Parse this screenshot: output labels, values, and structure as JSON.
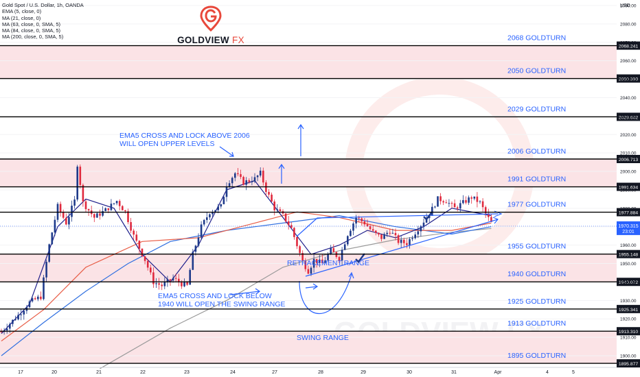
{
  "header": {
    "instrument": "Gold Spot / U.S. Dollar, 1h, OANDA",
    "indicators": [
      "EMA (5, close, 0)",
      "MA (21, close, 0)",
      "MA (63, close, 0, SMA, 5)",
      "MA (84, close, 0, SMA, 5)",
      "MA (200, close, 0, SMA, 5)"
    ]
  },
  "brand": {
    "logo_main": "GOLDVIEW",
    "logo_fx": "FX",
    "watermark": "GOLDVIEW FX",
    "accent": "#e8483b"
  },
  "colors": {
    "up_candle": "#1e3a8a",
    "down_candle": "#e0293d",
    "zone_fill": "#fbe3e6",
    "level_line": "#000000",
    "annotation": "#2962ff",
    "ema5": "#0d2b8c",
    "ma21": "#1e1e8a",
    "ma63": "#e85c45",
    "ma84": "#2f6fe0",
    "ma200": "#9a9a9a",
    "price_tag": "#2962ff"
  },
  "chart_data": {
    "type": "candlestick",
    "title": "Gold Spot / U.S. Dollar, 1h, OANDA",
    "ylabel": "USD",
    "ylim": [
      1893,
      2093
    ],
    "y_ticks": [
      1900,
      1910,
      1920,
      1930,
      1940,
      1950,
      1960,
      1970,
      1980,
      1990,
      2000,
      2010,
      2020,
      2030,
      2040,
      2050,
      2060,
      2070,
      2080,
      2090
    ],
    "x_ticks": [
      "17",
      "20",
      "21",
      "22",
      "23",
      "24",
      "27",
      "28",
      "29",
      "30",
      "31",
      "Apr",
      "4",
      "5"
    ],
    "last_price": {
      "value": "1970.315",
      "countdown": "23:01"
    },
    "levels": [
      {
        "value": 2068.241,
        "tag": "2068.241",
        "label": "2068 GOLDTURN"
      },
      {
        "value": 2050.39,
        "tag": "2050.390",
        "label": "2050 GOLDTURN"
      },
      {
        "value": 2029.602,
        "tag": "2029.602",
        "label": "2029 GOLDTURN"
      },
      {
        "value": 2006.713,
        "tag": "2006.713",
        "label": "2006 GOLDTURN"
      },
      {
        "value": 1991.634,
        "tag": "1991.634",
        "label": "1991 GOLDTURN"
      },
      {
        "value": 1977.884,
        "tag": "1977.884",
        "label": "1977 GOLDTURN"
      },
      {
        "value": 1955.148,
        "tag": "1955.148",
        "label": "1955 GOLDTURN"
      },
      {
        "value": 1940.072,
        "tag": "1940.072",
        "label": "1940 GOLDTURN"
      },
      {
        "value": 1925.341,
        "tag": "1925.341",
        "label": "1925 GOLDTURN"
      },
      {
        "value": 1913.31,
        "tag": "1913.310",
        "label": "1913 GOLDTURN"
      },
      {
        "value": 1895.877,
        "tag": "1895.877",
        "label": "1895 GOLDTURN"
      }
    ],
    "zones": [
      {
        "from": 2050.39,
        "to": 2068.241
      },
      {
        "from": 1991.634,
        "to": 2006.713
      },
      {
        "from": 1940.072,
        "to": 1955.148
      },
      {
        "from": 1895.877,
        "to": 1913.31
      }
    ],
    "annotations": {
      "ema_above_line1": "EMA5 CROSS AND LOCK ABOVE 2006",
      "ema_above_line2": "WILL OPEN UPPER LEVELS",
      "ema_below_line1": "EMA5 CROSS AND LOCK BELOW",
      "ema_below_line2": "1940 WILL OPEN THE SWING RANGE",
      "retracement": "RETRACEMENT RANGE",
      "swing": "SWING RANGE"
    },
    "price_path": [
      [
        0,
        1913
      ],
      [
        6,
        1922
      ],
      [
        10,
        1929
      ],
      [
        14,
        1932
      ],
      [
        17,
        1960
      ],
      [
        20,
        1981
      ],
      [
        23,
        1972
      ],
      [
        26,
        1984
      ],
      [
        27,
        2004
      ],
      [
        29,
        1983
      ],
      [
        33,
        1975
      ],
      [
        37,
        1979
      ],
      [
        41,
        1984
      ],
      [
        44,
        1978
      ],
      [
        47,
        1965
      ],
      [
        51,
        1952
      ],
      [
        54,
        1940
      ],
      [
        57,
        1938
      ],
      [
        61,
        1942
      ],
      [
        64,
        1939
      ],
      [
        66,
        1938
      ],
      [
        68,
        1955
      ],
      [
        71,
        1970
      ],
      [
        74,
        1978
      ],
      [
        78,
        1981
      ],
      [
        80,
        1993
      ],
      [
        83,
        1999
      ],
      [
        86,
        1994
      ],
      [
        90,
        1996
      ],
      [
        92,
        1999
      ],
      [
        94,
        1990
      ],
      [
        97,
        1980
      ],
      [
        100,
        1976
      ],
      [
        103,
        1969
      ],
      [
        105,
        1960
      ],
      [
        107,
        1951
      ],
      [
        109,
        1946
      ],
      [
        111,
        1952
      ],
      [
        114,
        1950
      ],
      [
        117,
        1957
      ],
      [
        120,
        1953
      ],
      [
        123,
        1966
      ],
      [
        126,
        1975
      ],
      [
        129,
        1972
      ],
      [
        132,
        1967
      ],
      [
        135,
        1964
      ],
      [
        138,
        1968
      ],
      [
        141,
        1962
      ],
      [
        144,
        1961
      ],
      [
        147,
        1967
      ],
      [
        150,
        1973
      ],
      [
        152,
        1977
      ],
      [
        155,
        1985
      ],
      [
        158,
        1984
      ],
      [
        161,
        1980
      ],
      [
        164,
        1983
      ],
      [
        167,
        1986
      ],
      [
        170,
        1983
      ],
      [
        172,
        1977
      ],
      [
        174,
        1972
      ]
    ],
    "ma_lines": [
      {
        "name": "MA 200",
        "points": [
          [
            35,
            1893
          ],
          [
            60,
            1915
          ],
          [
            80,
            1930
          ],
          [
            100,
            1948
          ],
          [
            120,
            1957
          ],
          [
            140,
            1963
          ],
          [
            160,
            1967
          ],
          [
            174,
            1969
          ]
        ]
      },
      {
        "name": "MA 84",
        "points": [
          [
            0,
            1900
          ],
          [
            15,
            1918
          ],
          [
            30,
            1935
          ],
          [
            45,
            1950
          ],
          [
            60,
            1962
          ],
          [
            80,
            1968
          ],
          [
            100,
            1972
          ],
          [
            120,
            1976
          ],
          [
            140,
            1970
          ],
          [
            160,
            1966
          ],
          [
            174,
            1970
          ]
        ]
      },
      {
        "name": "MA 63",
        "points": [
          [
            0,
            1908
          ],
          [
            15,
            1925
          ],
          [
            30,
            1948
          ],
          [
            50,
            1962
          ],
          [
            70,
            1964
          ],
          [
            90,
            1972
          ],
          [
            105,
            1978
          ],
          [
            120,
            1975
          ],
          [
            140,
            1968
          ],
          [
            160,
            1968
          ],
          [
            174,
            1972
          ]
        ]
      },
      {
        "name": "MA 21",
        "points": [
          [
            0,
            1912
          ],
          [
            10,
            1928
          ],
          [
            20,
            1970
          ],
          [
            30,
            1985
          ],
          [
            40,
            1980
          ],
          [
            50,
            1955
          ],
          [
            60,
            1940
          ],
          [
            70,
            1960
          ],
          [
            80,
            1990
          ],
          [
            90,
            1995
          ],
          [
            100,
            1975
          ],
          [
            110,
            1955
          ],
          [
            120,
            1960
          ],
          [
            130,
            1968
          ],
          [
            140,
            1964
          ],
          [
            150,
            1970
          ],
          [
            160,
            1980
          ],
          [
            174,
            1976
          ]
        ]
      }
    ]
  }
}
